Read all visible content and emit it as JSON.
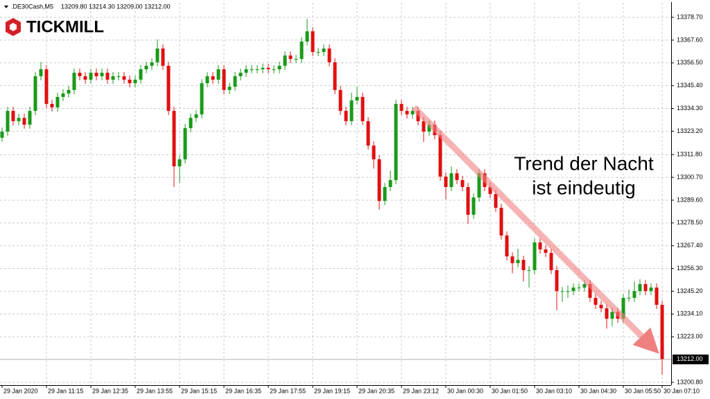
{
  "chart_data": {
    "type": "candlestick",
    "symbol": ".DE30Cash,M5",
    "quote": "13209.80 13214.30 13209.00 13212.00",
    "logo": "TICKMILL",
    "annotation": [
      "Trend der Nacht",
      "ist eindeutig"
    ],
    "up_color": "#1a9a1a",
    "down_color": "#e01010",
    "grid": true,
    "ylim": [
      13199.45,
      13385.8
    ],
    "yticks": [
      {
        "value": 13378.7,
        "label": "13378.70"
      },
      {
        "value": 13367.6,
        "label": "13367.60"
      },
      {
        "value": 13356.5,
        "label": "13356.50"
      },
      {
        "value": 13345.4,
        "label": "13345.40"
      },
      {
        "value": 13334.3,
        "label": "13334.30"
      },
      {
        "value": 13323.2,
        "label": "13323.20"
      },
      {
        "value": 13311.8,
        "label": "13311.80"
      },
      {
        "value": 13300.7,
        "label": "13300.70"
      },
      {
        "value": 13289.6,
        "label": "13289.60"
      },
      {
        "value": 13278.5,
        "label": "13278.50"
      },
      {
        "value": 13267.4,
        "label": "13267.40"
      },
      {
        "value": 13256.3,
        "label": "13256.30"
      },
      {
        "value": 13245.2,
        "label": "13245.20"
      },
      {
        "value": 13234.1,
        "label": "13234.10"
      },
      {
        "value": 13223,
        "label": "13223.00"
      },
      {
        "value": 13200.8,
        "label": "13200.80"
      }
    ],
    "current_price": {
      "value": 13212,
      "label": "13212.00"
    },
    "categories": [
      "29 Jan 2020",
      null,
      null,
      null,
      null,
      null,
      null,
      null,
      "29 Jan 11:15",
      null,
      null,
      null,
      null,
      null,
      null,
      null,
      "29 Jan 12:35",
      null,
      null,
      null,
      null,
      null,
      null,
      null,
      "29 Jan 13:55",
      null,
      null,
      null,
      null,
      null,
      null,
      null,
      "29 Jan 15:15",
      null,
      null,
      null,
      null,
      null,
      null,
      null,
      "29 Jan 16:35",
      null,
      null,
      null,
      null,
      null,
      null,
      null,
      "29 Jan 17:55",
      null,
      null,
      null,
      null,
      null,
      null,
      null,
      "29 Jan 19:15",
      null,
      null,
      null,
      null,
      null,
      null,
      null,
      "29 Jan 20:35",
      null,
      null,
      null,
      null,
      null,
      null,
      null,
      "29 Jan 23:12",
      null,
      null,
      null,
      null,
      null,
      null,
      null,
      "30 Jan 00:30",
      null,
      null,
      null,
      null,
      null,
      null,
      null,
      "30 Jan 01:50",
      null,
      null,
      null,
      null,
      null,
      null,
      null,
      "30 Jan 03:10",
      null,
      null,
      null,
      null,
      null,
      null,
      null,
      "30 Jan 04:30",
      null,
      null,
      null,
      null,
      null,
      null,
      null,
      "30 Jan 05:50",
      null,
      null,
      null,
      null,
      null,
      null,
      "30 Jan 07:10"
    ],
    "open": [
      13320.0,
      13323.0,
      13333.1,
      13328.1,
      13329.7,
      13326.4,
      13333.1,
      13350.0,
      13353.4,
      13336.5,
      13334.8,
      13339.9,
      13341.6,
      13343.3,
      13351.7,
      13350.0,
      13348.3,
      13351.7,
      13350.0,
      13351.7,
      13348.3,
      13350.0,
      13350.0,
      13348.3,
      13346.6,
      13348.3,
      13353.4,
      13355.1,
      13356.8,
      13363.5,
      13355.1,
      13333.1,
      13306.1,
      13309.5,
      13324.7,
      13329.7,
      13331.4,
      13346.6,
      13350.0,
      13348.3,
      13353.4,
      13343.3,
      13344.9,
      13350.0,
      13351.7,
      13353.4,
      13353.4,
      13353.4,
      13354.1,
      13353.4,
      13353.4,
      13355.1,
      13360.1,
      13358.4,
      13358.4,
      13366.9,
      13371.9,
      13361.8,
      13361.8,
      13363.5,
      13356.8,
      13343.3,
      13333.1,
      13328.1,
      13338.2,
      13339.9,
      13328.1,
      13316.2,
      13309.5,
      13289.2,
      13296.0,
      13299.4,
      13336.5,
      13333.1,
      13331.4,
      13333.1,
      13328.1,
      13323.0,
      13326.4,
      13321.3,
      13301.1,
      13296.0,
      13302.7,
      13299.4,
      13296.0,
      13282.5,
      13290.9,
      13302.7,
      13296.0,
      13292.6,
      13285.9,
      13272.4,
      13262.2,
      13258.9,
      13260.5,
      13255.5,
      13255.5,
      13269.0,
      13265.6,
      13263.9,
      13255.5,
      13245.3,
      13245.3,
      13245.3,
      13247.0,
      13247.0,
      13248.7,
      13242.0,
      13238.6,
      13236.9,
      13231.8,
      13235.2,
      13231.8,
      13242.0,
      13242.0,
      13245.3,
      13248.7,
      13245.3,
      13247.0,
      13238.6
    ],
    "high": [
      13325.0,
      13335.1,
      13335.1,
      13331.7,
      13331.7,
      13335.1,
      13352.0,
      13357.0,
      13355.4,
      13338.5,
      13341.9,
      13343.6,
      13345.3,
      13353.7,
      13353.7,
      13352.0,
      13353.7,
      13353.7,
      13353.7,
      13353.7,
      13352.0,
      13352.0,
      13352.0,
      13350.3,
      13350.3,
      13355.4,
      13357.1,
      13358.8,
      13368.0,
      13365.5,
      13357.1,
      13335.1,
      13311.5,
      13326.7,
      13331.7,
      13333.4,
      13348.6,
      13352.0,
      13352.0,
      13355.4,
      13355.4,
      13346.9,
      13352.0,
      13353.7,
      13355.4,
      13355.4,
      13355.4,
      13356.1,
      13356.1,
      13355.4,
      13357.1,
      13362.1,
      13362.1,
      13360.4,
      13368.9,
      13378.0,
      13373.9,
      13363.8,
      13365.5,
      13365.5,
      13358.8,
      13345.3,
      13335.1,
      13342.0,
      13345.0,
      13341.9,
      13330.1,
      13318.2,
      13311.5,
      13298.0,
      13304.0,
      13338.5,
      13338.5,
      13335.1,
      13335.1,
      13335.1,
      13330.1,
      13328.4,
      13328.4,
      13323.3,
      13303.1,
      13306.0,
      13304.7,
      13301.4,
      13298.0,
      13292.9,
      13304.7,
      13304.7,
      13298.0,
      13294.6,
      13287.9,
      13274.4,
      13264.2,
      13266.0,
      13262.5,
      13257.5,
      13271.0,
      13271.0,
      13267.6,
      13265.9,
      13257.5,
      13247.3,
      13248.0,
      13249.0,
      13249.0,
      13250.7,
      13250.7,
      13244.0,
      13240.6,
      13238.9,
      13237.2,
      13237.2,
      13244.0,
      13246.0,
      13250.0,
      13251.0,
      13250.7,
      13249.0,
      13249.0,
      13240.6
    ],
    "low": [
      13318.0,
      13321.0,
      13326.1,
      13326.1,
      13324.4,
      13324.4,
      13331.1,
      13348.0,
      13334.5,
      13332.8,
      13332.8,
      13337.9,
      13339.6,
      13341.3,
      13348.0,
      13346.3,
      13346.3,
      13348.0,
      13348.0,
      13346.3,
      13346.3,
      13348.0,
      13346.3,
      13344.6,
      13344.6,
      13346.3,
      13351.4,
      13353.1,
      13354.8,
      13353.1,
      13331.1,
      13296.0,
      13298.0,
      13307.5,
      13322.7,
      13327.7,
      13329.4,
      13344.6,
      13346.3,
      13346.3,
      13341.3,
      13341.3,
      13342.9,
      13348.0,
      13349.7,
      13351.4,
      13351.4,
      13351.4,
      13351.4,
      13351.4,
      13351.4,
      13353.1,
      13356.4,
      13356.4,
      13356.4,
      13364.9,
      13359.8,
      13359.8,
      13359.8,
      13354.8,
      13341.3,
      13331.1,
      13326.1,
      13326.1,
      13336.2,
      13326.1,
      13314.2,
      13305.0,
      13285.0,
      13287.2,
      13294.0,
      13297.4,
      13331.1,
      13329.4,
      13329.4,
      13326.1,
      13318.0,
      13321.0,
      13319.3,
      13299.1,
      13290.0,
      13294.0,
      13297.4,
      13294.0,
      13278.0,
      13280.5,
      13288.9,
      13294.0,
      13290.6,
      13283.9,
      13270.4,
      13260.2,
      13254.0,
      13256.9,
      13250.0,
      13247.0,
      13253.5,
      13263.6,
      13261.9,
      13253.5,
      13236.0,
      13240.0,
      13242.0,
      13243.3,
      13245.0,
      13245.0,
      13240.0,
      13236.6,
      13234.9,
      13227.0,
      13228.0,
      13229.8,
      13229.8,
      13240.0,
      13240.0,
      13243.3,
      13243.3,
      13243.3,
      13236.6,
      13204.5
    ],
    "close": [
      13323.0,
      13333.1,
      13328.1,
      13329.7,
      13326.4,
      13333.1,
      13350.0,
      13353.4,
      13336.5,
      13334.8,
      13339.9,
      13341.6,
      13343.3,
      13351.7,
      13350.0,
      13348.3,
      13351.7,
      13350.0,
      13351.7,
      13348.3,
      13350.0,
      13350.0,
      13348.3,
      13346.6,
      13348.3,
      13353.4,
      13355.1,
      13356.8,
      13363.5,
      13355.1,
      13333.1,
      13306.1,
      13309.5,
      13324.7,
      13329.7,
      13331.4,
      13346.6,
      13350.0,
      13348.3,
      13353.4,
      13343.3,
      13344.9,
      13350.0,
      13351.7,
      13353.4,
      13353.4,
      13353.4,
      13354.1,
      13353.4,
      13353.4,
      13355.1,
      13360.1,
      13358.4,
      13358.4,
      13366.9,
      13371.9,
      13361.8,
      13361.8,
      13363.5,
      13356.8,
      13343.3,
      13333.1,
      13328.1,
      13338.2,
      13339.9,
      13328.1,
      13316.2,
      13309.5,
      13289.2,
      13296.0,
      13299.4,
      13336.5,
      13333.1,
      13331.4,
      13333.1,
      13328.1,
      13323.0,
      13326.4,
      13321.3,
      13301.1,
      13296.0,
      13302.7,
      13299.4,
      13296.0,
      13282.5,
      13290.9,
      13302.7,
      13296.0,
      13292.6,
      13285.9,
      13272.4,
      13262.2,
      13258.9,
      13260.5,
      13255.5,
      13255.5,
      13269.0,
      13265.6,
      13263.9,
      13255.5,
      13245.3,
      13245.3,
      13245.3,
      13247.0,
      13247.0,
      13248.7,
      13242.0,
      13238.6,
      13236.9,
      13231.8,
      13235.2,
      13231.8,
      13242.0,
      13242.0,
      13245.3,
      13248.7,
      13245.3,
      13247.0,
      13238.6,
      13212.0
    ]
  }
}
